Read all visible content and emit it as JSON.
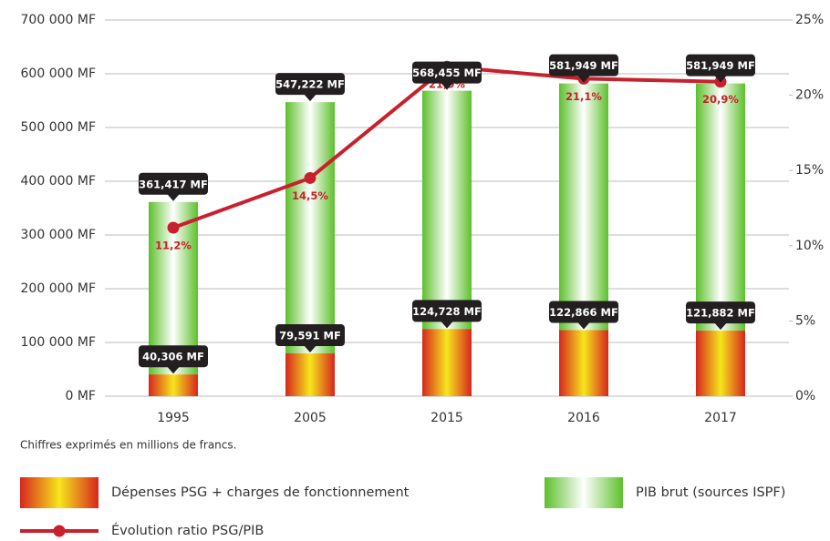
{
  "chart_data": {
    "type": "bar",
    "note": "Chiffres exprimés en millions de francs.",
    "categories": [
      "1995",
      "2005",
      "2015",
      "2016",
      "2017"
    ],
    "series": [
      {
        "name": "PIB brut (sources ISPF)",
        "colors": [
          "#5cc02b",
          "#ffffff"
        ],
        "values": [
          361417,
          547222,
          568455,
          581949,
          581949
        ],
        "value_labels": [
          "361,417 MF",
          "547,222 MF",
          "568,455 MF",
          "581,949 MF",
          "581,949 MF"
        ]
      },
      {
        "name": "Dépenses PSG + charges de fonctionnement",
        "colors": [
          "#d7261e",
          "#f6e61c"
        ],
        "values": [
          40306,
          79591,
          124728,
          122866,
          121882
        ],
        "value_labels": [
          "40,306 MF",
          "79,591 MF",
          "124,728 MF",
          "122,866 MF",
          "121,882 MF"
        ]
      },
      {
        "name": "Évolution ratio PSG/PIB",
        "type": "line",
        "axis": "y2",
        "color": "#c8202c",
        "values": [
          11.2,
          14.5,
          21.9,
          21.1,
          20.9
        ],
        "value_labels": [
          "11,2%",
          "14,5%",
          "21,9%",
          "21,1%",
          "20,9%"
        ]
      }
    ],
    "ylim": [
      0,
      700000
    ],
    "yticks": [
      {
        "value": 0,
        "label": "0 MF"
      },
      {
        "value": 100000,
        "label": "100 000 MF"
      },
      {
        "value": 200000,
        "label": "200 000 MF"
      },
      {
        "value": 300000,
        "label": "300 000 MF"
      },
      {
        "value": 400000,
        "label": "400 000 MF"
      },
      {
        "value": 500000,
        "label": "500 000 MF"
      },
      {
        "value": 600000,
        "label": "600 000 MF"
      },
      {
        "value": 700000,
        "label": "700 000 MF"
      }
    ],
    "y2lim": [
      0,
      25
    ],
    "y2ticks": [
      {
        "value": 0,
        "label": "0%"
      },
      {
        "value": 5,
        "label": "5%"
      },
      {
        "value": 10,
        "label": "10%"
      },
      {
        "value": 15,
        "label": "15%"
      },
      {
        "value": 20,
        "label": "20%"
      },
      {
        "value": 25,
        "label": "25%"
      }
    ],
    "grid": true
  }
}
